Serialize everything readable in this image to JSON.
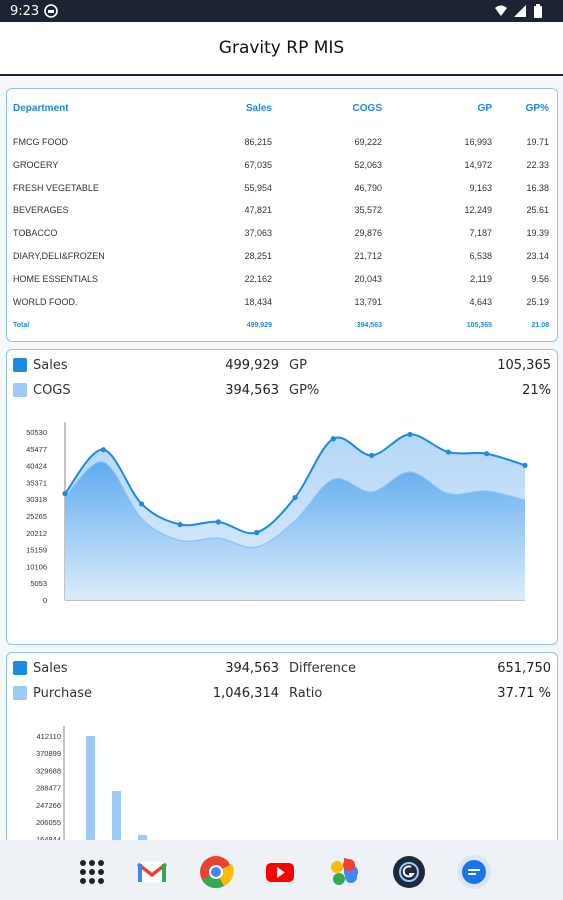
{
  "status": {
    "time": "9:23"
  },
  "app": {
    "title": "Gravity RP MIS"
  },
  "table": {
    "headers": {
      "department": "Department",
      "sales": "Sales",
      "cogs": "COGS",
      "gp": "GP",
      "gp_pct": "GP%"
    },
    "rows": [
      {
        "department": "FMCG FOOD",
        "sales": "86,215",
        "cogs": "69,222",
        "gp": "16,993",
        "gp_pct": "19.71"
      },
      {
        "department": "GROCERY",
        "sales": "67,035",
        "cogs": "52,063",
        "gp": "14,972",
        "gp_pct": "22.33"
      },
      {
        "department": "FRESH VEGETABLE",
        "sales": "55,954",
        "cogs": "46,790",
        "gp": "9,163",
        "gp_pct": "16.38"
      },
      {
        "department": "BEVERAGES",
        "sales": "47,821",
        "cogs": "35,572",
        "gp": "12,249",
        "gp_pct": "25.61"
      },
      {
        "department": "TOBACCO",
        "sales": "37,063",
        "cogs": "29,876",
        "gp": "7,187",
        "gp_pct": "19.39"
      },
      {
        "department": "DIARY,DELI&FROZEN",
        "sales": "28,251",
        "cogs": "21,712",
        "gp": "6,538",
        "gp_pct": "23.14"
      },
      {
        "department": "HOME ESSENTIALS",
        "sales": "22,162",
        "cogs": "20,043",
        "gp": "2,119",
        "gp_pct": "9.56"
      },
      {
        "department": "WORLD FOOD.",
        "sales": "18,434",
        "cogs": "13,791",
        "gp": "4,643",
        "gp_pct": "25.19"
      }
    ],
    "total": {
      "department": "Total",
      "sales": "499,929",
      "cogs": "394,563",
      "gp": "105,365",
      "gp_pct": "21.08"
    }
  },
  "summary1": {
    "sales_label": "Sales",
    "sales_value": "499,929",
    "cogs_label": "COGS",
    "cogs_value": "394,563",
    "gp_label": "GP",
    "gp_value": "105,365",
    "gp_pct_label": "GP%",
    "gp_pct_value": "21%"
  },
  "summary2": {
    "sales_label": "Sales",
    "sales_value": "394,563",
    "purchase_label": "Purchase",
    "purchase_value": "1,046,314",
    "difference_label": "Difference",
    "difference_value": "651,750",
    "ratio_label": "Ratio",
    "ratio_value": "37.71 %"
  },
  "colors": {
    "sales": "#1e88e5",
    "cogs": "#9ccaf5",
    "accent": "#1e88e5"
  },
  "chart_data": [
    {
      "type": "area",
      "ylim": [
        0,
        50530
      ],
      "yticks": [
        "50530",
        "45477",
        "40424",
        "35371",
        "30318",
        "25265",
        "20212",
        "15159",
        "10106",
        "5053",
        "0"
      ],
      "series": [
        {
          "name": "Sales",
          "values": [
            32000,
            45200,
            28900,
            22700,
            23500,
            20300,
            30800,
            48500,
            43500,
            49800,
            44500,
            44000,
            40500
          ]
        },
        {
          "name": "COGS",
          "values": [
            31000,
            41500,
            24500,
            17900,
            18600,
            15900,
            23800,
            36300,
            32500,
            38500,
            32000,
            32800,
            30000
          ]
        }
      ]
    },
    {
      "type": "bar",
      "yticks": [
        "412110",
        "370899",
        "329688",
        "288477",
        "247266",
        "206055",
        "164844"
      ],
      "series": [
        {
          "name": "Purchase",
          "values": [
            412110,
            280000,
            175000
          ]
        }
      ]
    }
  ],
  "nav": {
    "icons": [
      "app-drawer-icon",
      "gmail-icon",
      "chrome-icon",
      "youtube-icon",
      "photos-icon",
      "gravity-app-icon",
      "messages-icon"
    ]
  }
}
